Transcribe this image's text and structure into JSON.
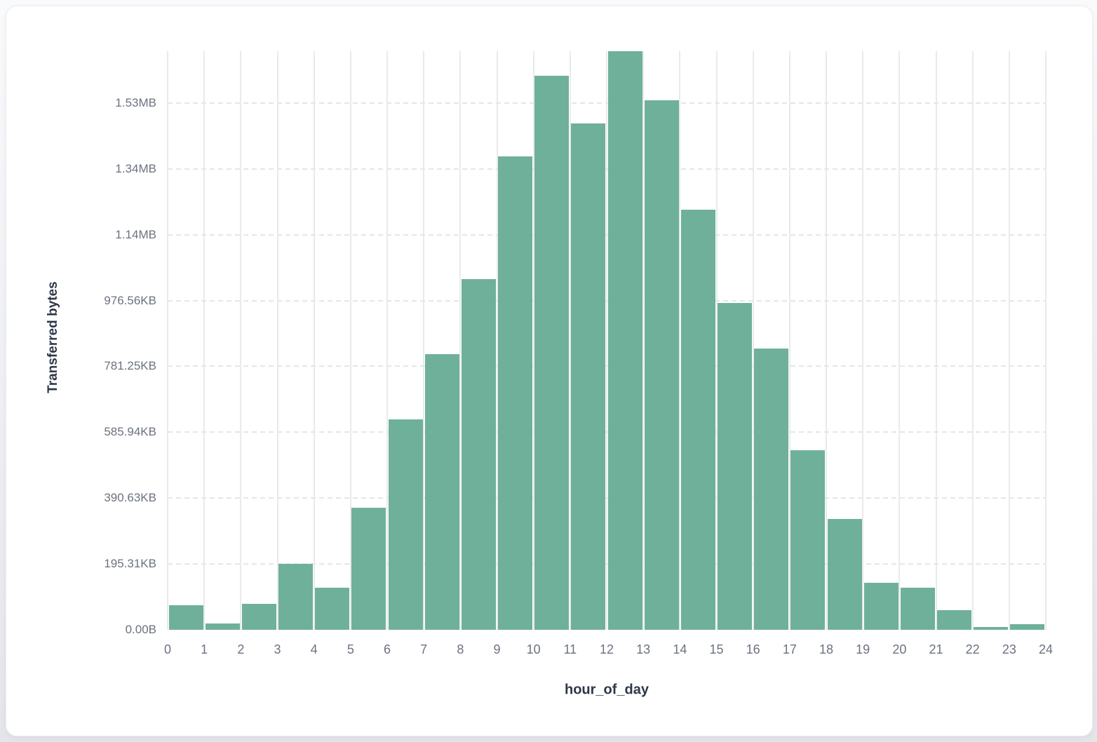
{
  "chart_data": {
    "type": "bar",
    "title": "",
    "xlabel": "hour_of_day",
    "ylabel": "Transferred bytes",
    "legend": "none",
    "grid": {
      "vertical": "solid",
      "horizontal": "dashed"
    },
    "bar_color": "#6FB09B",
    "x_tick_labels": [
      "0",
      "1",
      "2",
      "3",
      "4",
      "5",
      "6",
      "7",
      "8",
      "9",
      "10",
      "11",
      "12",
      "13",
      "14",
      "15",
      "16",
      "17",
      "18",
      "19",
      "20",
      "21",
      "22",
      "23",
      "24"
    ],
    "y_ticks": [
      {
        "label": "0.00B",
        "bytes": 0
      },
      {
        "label": "195.31KB",
        "bytes": 200000
      },
      {
        "label": "390.63KB",
        "bytes": 400000
      },
      {
        "label": "585.94KB",
        "bytes": 600000
      },
      {
        "label": "781.25KB",
        "bytes": 800000
      },
      {
        "label": "976.56KB",
        "bytes": 1000000
      },
      {
        "label": "1.14MB",
        "bytes": 1200000
      },
      {
        "label": "1.34MB",
        "bytes": 1400000
      },
      {
        "label": "1.53MB",
        "bytes": 1600000
      }
    ],
    "ylim_bytes": [
      0,
      1757200
    ],
    "series": [
      {
        "name": "Transferred bytes",
        "hours": [
          0,
          1,
          2,
          3,
          4,
          5,
          6,
          7,
          8,
          9,
          10,
          11,
          12,
          13,
          14,
          15,
          16,
          17,
          18,
          19,
          20,
          21,
          22,
          23
        ],
        "values_bytes": [
          74500,
          19200,
          78800,
          199700,
          127800,
          370600,
          639000,
          837100,
          1065000,
          1437700,
          1682600,
          1537800,
          1757200,
          1608100,
          1275800,
          992500,
          854100,
          545300,
          336500,
          142700,
          127800,
          59600,
          8500,
          17000
        ]
      }
    ]
  },
  "colors": {
    "bar": "#6FB09B",
    "tick_text": "#6B7280",
    "axis_title_text": "#2D3748",
    "grid_vertical": "#E8EAEE",
    "grid_horizontal": "#E3E6EB",
    "card_background": "#FFFFFF",
    "page_background": "#EDEFF2"
  }
}
